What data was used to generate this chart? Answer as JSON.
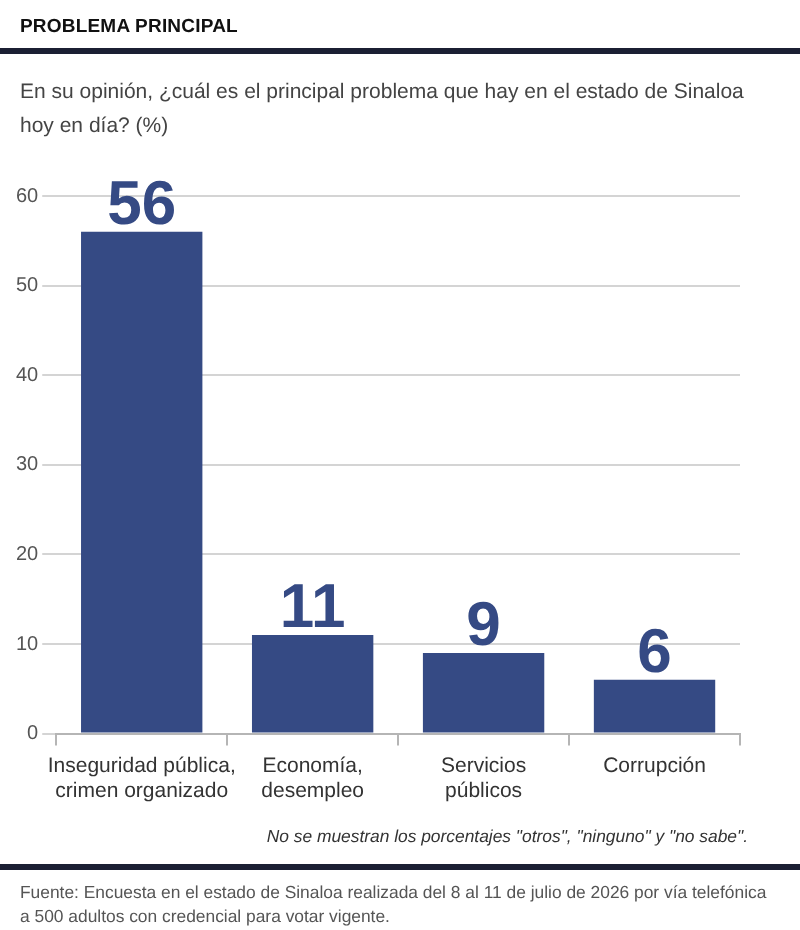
{
  "chart_data": {
    "type": "bar",
    "title": "PROBLEMA PRINCIPAL",
    "subtitle": "En su opinión, ¿cuál es el principal problema que hay en el estado de Sinaloa hoy en día? (%)",
    "categories": [
      "Inseguridad pública, crimen organizado",
      "Economía, desempleo",
      "Servicios públicos",
      "Corrupción"
    ],
    "values": [
      56,
      11,
      9,
      6
    ],
    "color": "#354a84",
    "ylim": [
      0,
      60
    ],
    "yticks": [
      0,
      10,
      20,
      30,
      40,
      50,
      60
    ],
    "grid": "y",
    "data_labels": true,
    "annotations": [
      "No se muestran los porcentajes \"otros\", \"ninguno\" y \"no sabe\".",
      "Fuente: Encuesta en el estado de Sinaloa realizada del 8 al 11 de julio de 2026 por vía telefónica a 500 adultos con credencial para votar vigente."
    ]
  }
}
